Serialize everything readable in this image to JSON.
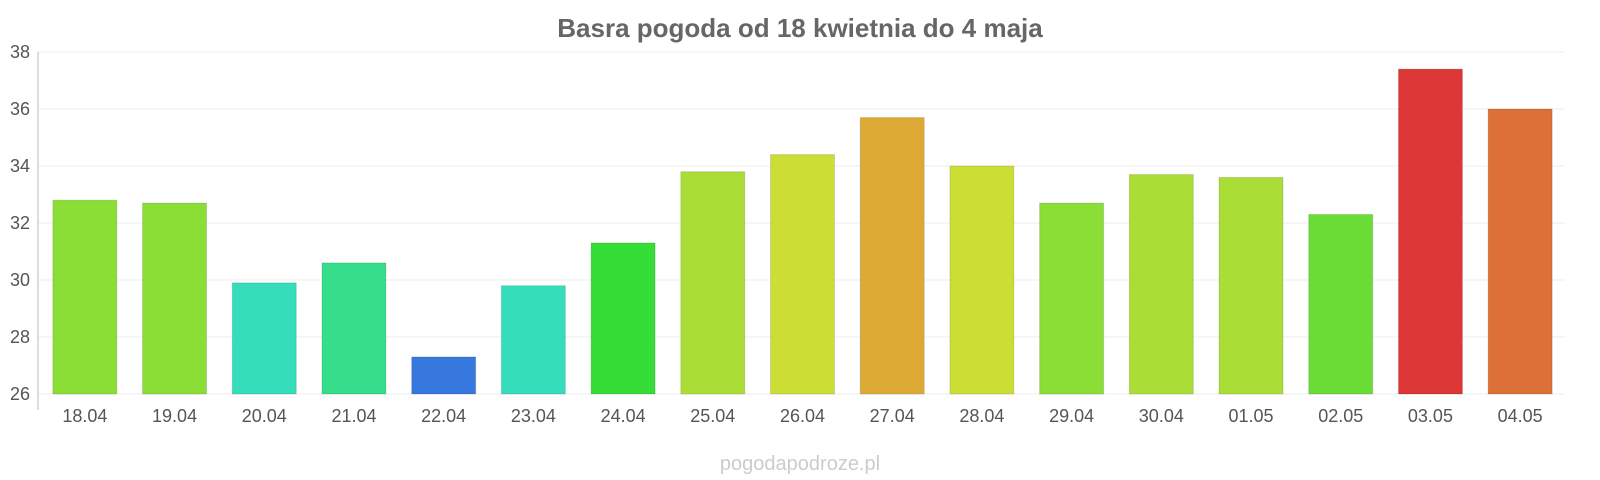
{
  "chart_data": {
    "type": "bar",
    "title": "Basra pogoda od 18 kwietnia do 4 maja",
    "xlabel": "",
    "ylabel": "",
    "ylim": [
      26,
      38
    ],
    "yticks": [
      "26",
      "28",
      "30",
      "32",
      "34",
      "36",
      "38"
    ],
    "grid": true,
    "categories": [
      "18.04",
      "19.04",
      "20.04",
      "21.04",
      "22.04",
      "23.04",
      "24.04",
      "25.04",
      "26.04",
      "27.04",
      "28.04",
      "29.04",
      "30.04",
      "01.05",
      "02.05",
      "03.05",
      "04.05"
    ],
    "values": [
      32.8,
      32.7,
      29.9,
      30.6,
      27.3,
      29.8,
      31.3,
      33.8,
      34.4,
      35.7,
      34.0,
      32.7,
      33.7,
      33.6,
      32.3,
      37.4,
      36.0
    ],
    "colors": [
      "#8ade36",
      "#8ade36",
      "#36ddbb",
      "#36dd8a",
      "#3678dd",
      "#36ddbb",
      "#36dd36",
      "#aadd36",
      "#ccdd36",
      "#ddaa36",
      "#ccdd36",
      "#8ade36",
      "#aadd36",
      "#aadd36",
      "#69dd36",
      "#dd3636",
      "#dd7036"
    ]
  },
  "watermark": "pogodapodroze.pl"
}
